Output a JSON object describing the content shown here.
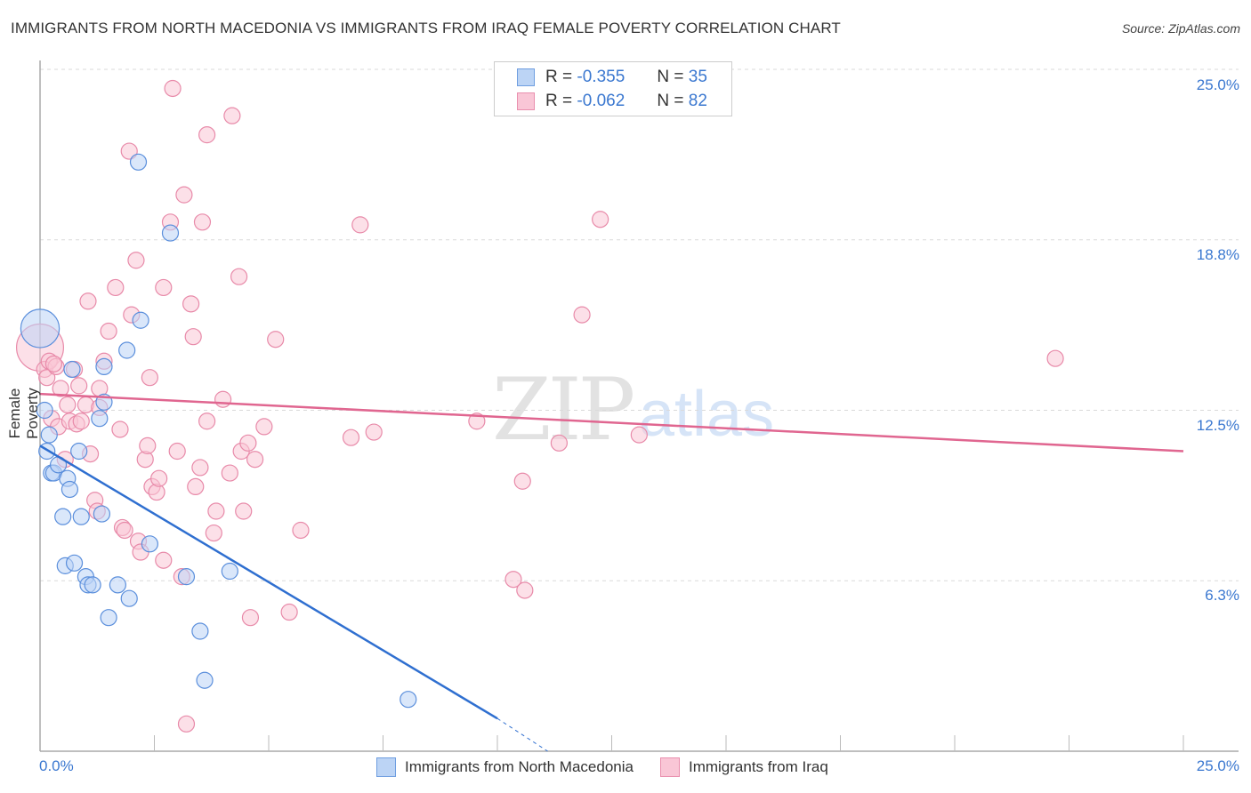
{
  "header": {
    "title": "IMMIGRANTS FROM NORTH MACEDONIA VS IMMIGRANTS FROM IRAQ FEMALE POVERTY CORRELATION CHART",
    "source": "Source: ZipAtlas.com"
  },
  "legend": {
    "rows": [
      {
        "r_label": "R =",
        "r_value": "-0.355",
        "n_label": "N =",
        "n_value": "35"
      },
      {
        "r_label": "R =",
        "r_value": "-0.062",
        "n_label": "N =",
        "n_value": "82"
      }
    ]
  },
  "axes": {
    "y_label": "Female Poverty",
    "y_ticks": [
      "25.0%",
      "18.8%",
      "12.5%",
      "6.3%"
    ],
    "x_ticks": [
      "0.0%",
      "25.0%"
    ]
  },
  "bottom_legend": {
    "series": [
      "Immigrants from North Macedonia",
      "Immigrants from Iraq"
    ]
  },
  "watermark": {
    "zip": "ZIP",
    "atlas": "atlas"
  },
  "colors": {
    "blue_fill": "#bcd4f5",
    "blue_stroke": "#5b8fdc",
    "blue_line": "#2f6fd0",
    "pink_fill": "#f9c6d6",
    "pink_stroke": "#e88aa9",
    "pink_line": "#e06690",
    "tick_label": "#3b78d0"
  },
  "chart_data": {
    "type": "scatter",
    "title": "IMMIGRANTS FROM NORTH MACEDONIA VS IMMIGRANTS FROM IRAQ FEMALE POVERTY CORRELATION CHART",
    "xlabel": "",
    "ylabel": "Female Poverty",
    "xlim": [
      0,
      25
    ],
    "ylim": [
      0,
      25
    ],
    "x_tick_labels": [
      "0.0%",
      "25.0%"
    ],
    "y_tick_labels": [
      "6.3%",
      "12.5%",
      "18.8%",
      "25.0%"
    ],
    "grid": true,
    "legend_position": "top-center / bottom",
    "series": [
      {
        "name": "Immigrants from North Macedonia",
        "R": -0.355,
        "N": 35,
        "color": "#5b8fdc",
        "trend": {
          "x": [
            0,
            10
          ],
          "y": [
            11.2,
            1.2
          ],
          "dashed_extension_to": [
            11.1,
            0
          ]
        },
        "points": [
          [
            0.0,
            15.5,
            1.8
          ],
          [
            0.15,
            11.0
          ],
          [
            0.2,
            11.6
          ],
          [
            0.25,
            10.2
          ],
          [
            0.3,
            10.2
          ],
          [
            0.4,
            10.5
          ],
          [
            0.5,
            8.6
          ],
          [
            0.55,
            6.8
          ],
          [
            0.6,
            10.0
          ],
          [
            0.65,
            9.6
          ],
          [
            0.7,
            14.0
          ],
          [
            0.75,
            6.9
          ],
          [
            0.85,
            11.0
          ],
          [
            0.9,
            8.6
          ],
          [
            1.0,
            6.4
          ],
          [
            1.05,
            6.1
          ],
          [
            1.15,
            6.1
          ],
          [
            1.3,
            12.2
          ],
          [
            1.35,
            8.7
          ],
          [
            1.4,
            12.8
          ],
          [
            1.4,
            14.1
          ],
          [
            1.5,
            4.9
          ],
          [
            1.7,
            6.1
          ],
          [
            1.9,
            14.7
          ],
          [
            1.95,
            5.6
          ],
          [
            2.2,
            15.8
          ],
          [
            2.15,
            21.6
          ],
          [
            2.4,
            7.6
          ],
          [
            2.85,
            19.0
          ],
          [
            3.2,
            6.4
          ],
          [
            3.5,
            4.4
          ],
          [
            3.6,
            2.6
          ],
          [
            4.15,
            6.6
          ],
          [
            8.05,
            1.9
          ],
          [
            0.1,
            12.5
          ]
        ]
      },
      {
        "name": "Immigrants from Iraq",
        "R": -0.062,
        "N": 82,
        "color": "#e88aa9",
        "trend": {
          "x": [
            0,
            25
          ],
          "y": [
            13.1,
            11.0
          ]
        },
        "points": [
          [
            0.0,
            14.8,
            2.2
          ],
          [
            0.1,
            14.0
          ],
          [
            0.15,
            13.7
          ],
          [
            0.2,
            14.3
          ],
          [
            0.25,
            12.2
          ],
          [
            0.35,
            14.1
          ],
          [
            0.4,
            11.9
          ],
          [
            0.45,
            13.3
          ],
          [
            0.55,
            10.7
          ],
          [
            0.6,
            12.7
          ],
          [
            0.65,
            12.1
          ],
          [
            0.75,
            14.0
          ],
          [
            0.8,
            12.0
          ],
          [
            0.85,
            13.4
          ],
          [
            0.9,
            12.1
          ],
          [
            1.0,
            12.7
          ],
          [
            1.05,
            16.5
          ],
          [
            1.1,
            10.9
          ],
          [
            1.2,
            9.2
          ],
          [
            1.25,
            8.8
          ],
          [
            1.3,
            13.3
          ],
          [
            1.4,
            14.3
          ],
          [
            1.5,
            15.4
          ],
          [
            1.65,
            17.0
          ],
          [
            1.75,
            11.8
          ],
          [
            1.8,
            8.2
          ],
          [
            1.85,
            8.1
          ],
          [
            1.95,
            22.0
          ],
          [
            2.0,
            16.0
          ],
          [
            2.1,
            18.0
          ],
          [
            2.15,
            7.7
          ],
          [
            2.2,
            7.3
          ],
          [
            2.3,
            10.7
          ],
          [
            2.35,
            11.2
          ],
          [
            2.4,
            13.7
          ],
          [
            2.45,
            9.7
          ],
          [
            2.55,
            9.5
          ],
          [
            2.6,
            10.0
          ],
          [
            2.7,
            7.0
          ],
          [
            2.7,
            17.0
          ],
          [
            2.9,
            24.3
          ],
          [
            2.85,
            19.4
          ],
          [
            3.0,
            11.0
          ],
          [
            3.1,
            6.4
          ],
          [
            3.15,
            20.4
          ],
          [
            3.2,
            1.0
          ],
          [
            3.3,
            16.4
          ],
          [
            3.35,
            15.2
          ],
          [
            3.4,
            9.7
          ],
          [
            3.5,
            10.4
          ],
          [
            3.55,
            19.4
          ],
          [
            3.65,
            12.1
          ],
          [
            3.65,
            22.6
          ],
          [
            3.8,
            8.0
          ],
          [
            3.85,
            8.8
          ],
          [
            4.0,
            12.9
          ],
          [
            4.15,
            10.2
          ],
          [
            4.2,
            23.3
          ],
          [
            4.35,
            17.4
          ],
          [
            4.4,
            11.0
          ],
          [
            4.45,
            8.8
          ],
          [
            4.55,
            11.3
          ],
          [
            4.6,
            4.9
          ],
          [
            4.7,
            10.7
          ],
          [
            4.9,
            11.9
          ],
          [
            5.15,
            15.1
          ],
          [
            5.45,
            5.1
          ],
          [
            5.7,
            8.1
          ],
          [
            6.8,
            11.5
          ],
          [
            7.0,
            19.3
          ],
          [
            7.3,
            11.7
          ],
          [
            9.55,
            12.1
          ],
          [
            10.35,
            6.3
          ],
          [
            10.6,
            5.9
          ],
          [
            10.55,
            9.9
          ],
          [
            11.35,
            11.3
          ],
          [
            11.85,
            16.0
          ],
          [
            12.25,
            19.5
          ],
          [
            13.1,
            11.6
          ],
          [
            22.2,
            14.4
          ],
          [
            0.3,
            14.2
          ],
          [
            1.3,
            12.6
          ]
        ]
      }
    ]
  }
}
